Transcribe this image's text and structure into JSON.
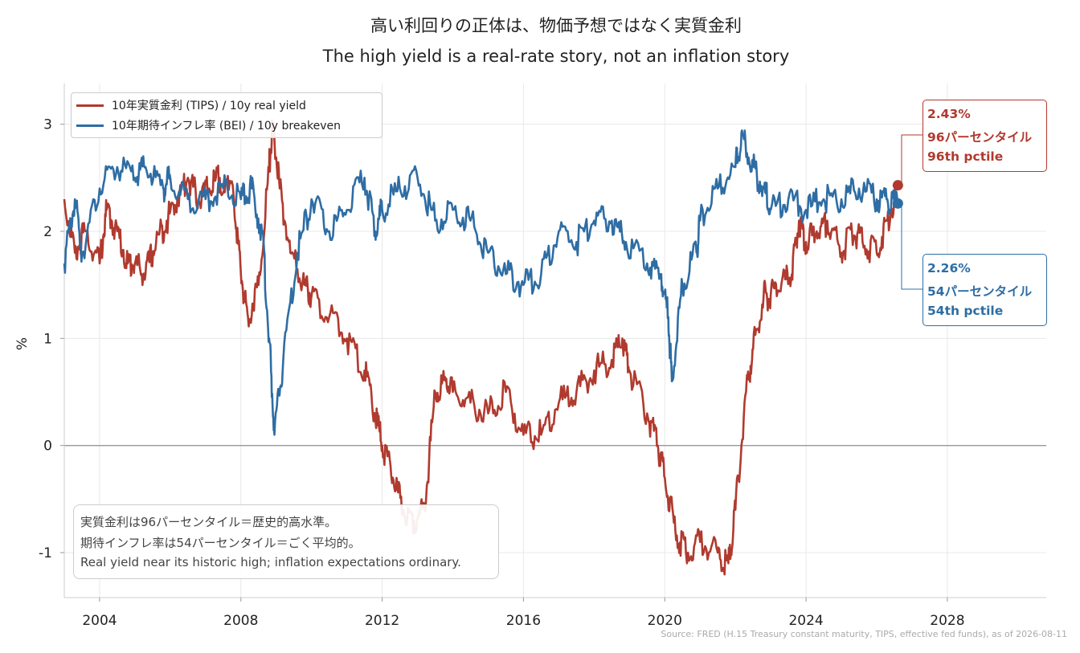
{
  "title_ja": "高い利回りの正体は、物価予想ではなく実質金利",
  "title_en": "The high yield is a real-rate story, not an inflation story",
  "source": "Source: FRED (H.15 Treasury constant maturity, TIPS, effective fed funds), as of 2026-08-11",
  "note": {
    "line1": "実質金利は96パーセンタイル＝歴史的高水準。",
    "line2": "期待インフレ率は54パーセンタイル＝ごく平均的。",
    "line3": "Real yield near its historic high; inflation expectations ordinary."
  },
  "callouts": {
    "real": {
      "value": "2.43%",
      "pct_ja": "96パーセンタイル",
      "pct_en": "96th pctile"
    },
    "breakeven": {
      "value": "2.26%",
      "pct_ja": "54パーセンタイル",
      "pct_en": "54th pctile"
    }
  },
  "colors": {
    "real": "#b03a2e",
    "breakeven": "#2e6da4",
    "zero_line": "#999999",
    "grid": "#e8e8e8"
  },
  "chart_data": {
    "type": "line",
    "title": "高い利回りの正体は、物価予想ではなく実質金利",
    "subtitle": "The high yield is a real-rate story, not an inflation story",
    "xlabel": "",
    "ylabel": "%",
    "xlim": [
      2003.0,
      2030.8
    ],
    "ylim": [
      -1.42,
      3.38
    ],
    "xticks": [
      "2004",
      "2008",
      "2012",
      "2016",
      "2020",
      "2024",
      "2028"
    ],
    "xtick_values": [
      2004,
      2008,
      2012,
      2016,
      2020,
      2024,
      2028
    ],
    "yticks": [
      "-1",
      "0",
      "1",
      "2",
      "3"
    ],
    "ytick_values": [
      -1,
      0,
      1,
      2,
      3
    ],
    "grid": true,
    "legend_position": "top-left",
    "series": [
      {
        "name": "10年実質金利 (TIPS) / 10y real yield",
        "color": "#b03a2e",
        "x": [
          2003.0,
          2003.3,
          2003.6,
          2004.0,
          2004.2,
          2004.5,
          2004.8,
          2005.0,
          2005.3,
          2005.6,
          2005.9,
          2006.2,
          2006.5,
          2006.8,
          2007.1,
          2007.4,
          2007.8,
          2008.0,
          2008.2,
          2008.5,
          2008.8,
          2008.9,
          2009.1,
          2009.4,
          2009.8,
          2010.0,
          2010.5,
          2011.0,
          2011.5,
          2011.8,
          2012.0,
          2012.3,
          2012.6,
          2012.9,
          2013.2,
          2013.5,
          2013.8,
          2014.0,
          2014.5,
          2015.0,
          2015.5,
          2016.0,
          2016.5,
          2017.0,
          2017.5,
          2018.0,
          2018.5,
          2018.8,
          2019.0,
          2019.5,
          2019.8,
          2020.0,
          2020.3,
          2020.6,
          2021.0,
          2021.5,
          2021.8,
          2022.0,
          2022.3,
          2022.5,
          2022.8,
          2023.0,
          2023.3,
          2023.6,
          2023.8,
          2024.0,
          2024.3,
          2024.6,
          2025.0,
          2025.3,
          2025.6,
          2026.0,
          2026.3,
          2026.6
        ],
        "values": [
          2.3,
          1.8,
          2.0,
          1.7,
          2.2,
          2.0,
          1.7,
          1.7,
          1.6,
          1.9,
          2.1,
          2.3,
          2.5,
          2.3,
          2.4,
          2.5,
          2.3,
          1.6,
          1.2,
          1.5,
          2.6,
          3.0,
          2.4,
          1.8,
          1.5,
          1.4,
          1.2,
          1.0,
          0.7,
          0.3,
          0.0,
          -0.3,
          -0.6,
          -0.7,
          -0.6,
          0.5,
          0.6,
          0.5,
          0.4,
          0.3,
          0.5,
          0.1,
          0.1,
          0.4,
          0.5,
          0.7,
          0.8,
          1.0,
          0.7,
          0.3,
          0.0,
          -0.3,
          -0.8,
          -1.0,
          -0.9,
          -1.0,
          -1.1,
          -0.6,
          0.5,
          0.9,
          1.4,
          1.4,
          1.5,
          1.6,
          2.1,
          1.9,
          2.0,
          2.1,
          1.8,
          2.0,
          1.9,
          1.8,
          2.1,
          2.43
        ]
      },
      {
        "name": "10年期待インフレ率 (BEI) / 10y breakeven",
        "color": "#2e6da4",
        "x": [
          2003.0,
          2003.3,
          2003.5,
          2004.0,
          2004.5,
          2005.0,
          2005.3,
          2005.8,
          2006.0,
          2006.5,
          2007.0,
          2007.5,
          2008.0,
          2008.3,
          2008.6,
          2008.8,
          2008.95,
          2009.2,
          2009.6,
          2010.0,
          2010.5,
          2011.0,
          2011.5,
          2011.8,
          2012.0,
          2012.5,
          2013.0,
          2013.5,
          2014.0,
          2014.5,
          2015.0,
          2015.5,
          2016.0,
          2016.5,
          2017.0,
          2017.5,
          2018.0,
          2018.5,
          2018.9,
          2019.5,
          2019.9,
          2020.1,
          2020.2,
          2020.5,
          2020.9,
          2021.0,
          2021.5,
          2022.0,
          2022.2,
          2022.5,
          2022.8,
          2023.0,
          2023.5,
          2024.0,
          2024.5,
          2025.0,
          2025.5,
          2026.0,
          2026.3,
          2026.6
        ],
        "values": [
          1.7,
          2.3,
          1.8,
          2.4,
          2.6,
          2.5,
          2.6,
          2.4,
          2.5,
          2.3,
          2.3,
          2.4,
          2.3,
          2.4,
          2.0,
          1.0,
          0.1,
          0.8,
          1.8,
          2.3,
          2.0,
          2.2,
          2.5,
          2.0,
          2.2,
          2.4,
          2.5,
          2.1,
          2.2,
          2.1,
          1.8,
          1.6,
          1.5,
          1.6,
          2.0,
          1.9,
          2.1,
          2.1,
          1.9,
          1.7,
          1.6,
          1.2,
          0.6,
          1.5,
          1.8,
          2.1,
          2.4,
          2.6,
          2.9,
          2.6,
          2.4,
          2.2,
          2.3,
          2.2,
          2.3,
          2.3,
          2.4,
          2.3,
          2.3,
          2.26
        ]
      }
    ],
    "annotations": [
      {
        "series": "real",
        "x": 2026.6,
        "y": 2.43,
        "text": [
          "2.43%",
          "96パーセンタイル",
          "96th pctile"
        ]
      },
      {
        "series": "breakeven",
        "x": 2026.6,
        "y": 2.26,
        "text": [
          "2.26%",
          "54パーセンタイル",
          "54th pctile"
        ]
      }
    ]
  }
}
